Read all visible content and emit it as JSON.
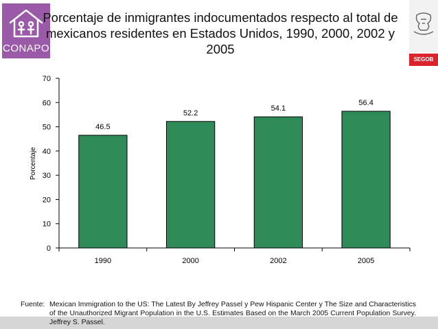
{
  "header": {
    "logo_text": "CONAPO",
    "title": "Porcentaje de inmigrantes indocumentados respecto al total de mexicanos residentes en Estados Unidos, 1990, 2000, 2002 y 2005",
    "segob_label": "SEGOB"
  },
  "colors": {
    "bar_fill": "#2e8b57",
    "conapo_purple": "#9a5aa8",
    "segob_red": "#d9232d"
  },
  "chart_data": {
    "type": "bar",
    "title": "Porcentaje de inmigrantes indocumentados respecto al total de mexicanos residentes en Estados Unidos, 1990, 2000, 2002 y 2005",
    "categories": [
      "1990",
      "2000",
      "2002",
      "2005"
    ],
    "values": [
      46.5,
      52.2,
      54.1,
      56.4
    ],
    "data_labels": [
      "46.5",
      "52.2",
      "54.1",
      "56.4"
    ],
    "xlabel": "",
    "ylabel": "Porcentaje",
    "ylim": [
      0,
      70
    ],
    "yticks": [
      "0",
      "10",
      "20",
      "30",
      "40",
      "50",
      "60",
      "70"
    ],
    "grid": false,
    "legend": "none"
  },
  "footer": {
    "source_label": "Fuente:",
    "source_text": "Mexican Immigration to the US: The Latest By Jeffrey Passel y Pew Hispanic Center y The Size and Characteristics of the Unauthorized Migrant Population in the U.S. Estimates Based on the March 2005 Current Population Survey. Jeffrey S. Passel."
  }
}
